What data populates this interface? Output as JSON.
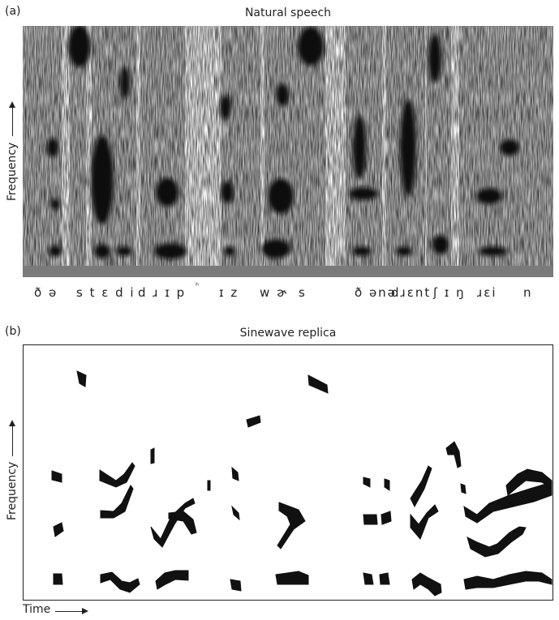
{
  "figure": {
    "panel_a": {
      "label": "(a)",
      "title": "Natural speech",
      "y_axis_label": "Frequency",
      "phonetic_transcription": [
        {
          "id": "t1",
          "text": "ð ə"
        },
        {
          "id": "t2",
          "text": "s t ɛ d i"
        },
        {
          "id": "t3",
          "text": "d ɹ ɪ p"
        },
        {
          "id": "t4",
          "text": "ʰ"
        },
        {
          "id": "t5",
          "text": "ɪ z"
        },
        {
          "id": "t6",
          "text": "w ɚ"
        },
        {
          "id": "t7",
          "text": "s"
        },
        {
          "id": "t8",
          "text": "ð ənə"
        },
        {
          "id": "t9",
          "text": "dɹɛnt"
        },
        {
          "id": "t10",
          "text": "ʃ ɪ ŋ"
        },
        {
          "id": "t11",
          "text": "ɹɛi"
        },
        {
          "id": "t12",
          "text": "n"
        }
      ]
    },
    "panel_b": {
      "label": "(b)",
      "title": "Sinewave replica",
      "y_axis_label": "Frequency",
      "x_axis_label": "Time"
    }
  }
}
